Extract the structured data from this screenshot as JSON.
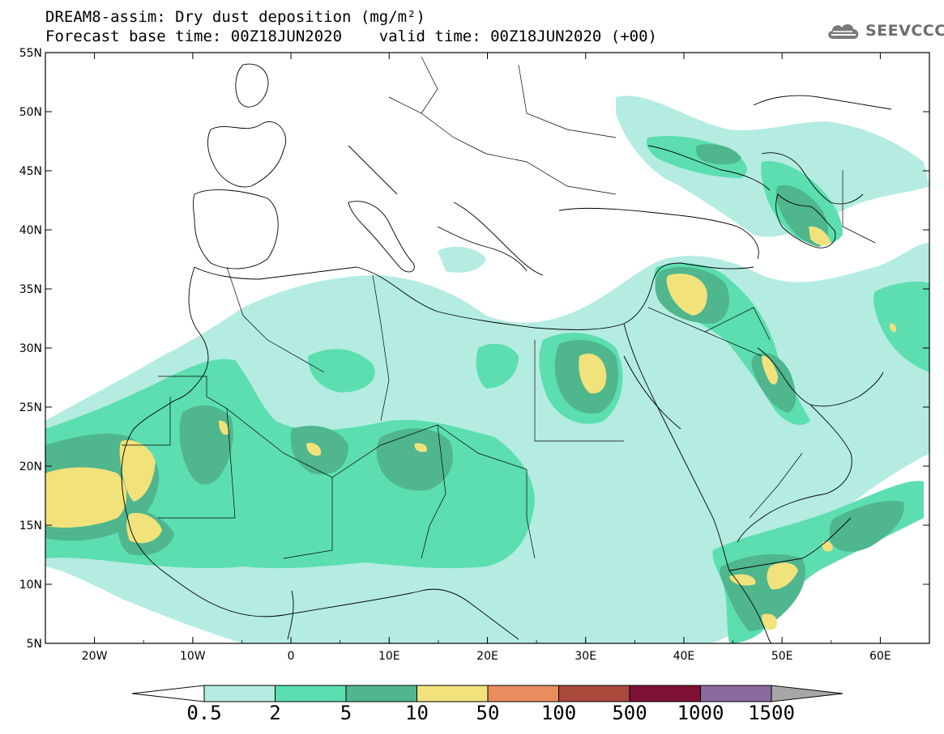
{
  "header": {
    "title_line1": "DREAM8-assim: Dry dust deposition (mg/m²)",
    "title_line2": "Forecast base time: 00Z18JUN2020    valid time: 00Z18JUN2020 (+00)"
  },
  "logo": {
    "text": "SEEVCCC",
    "icon": "cloud-logo-icon"
  },
  "map": {
    "lon_range": [
      -25,
      65
    ],
    "lat_range": [
      5,
      55
    ],
    "lat_ticks": [
      "55N",
      "50N",
      "45N",
      "40N",
      "35N",
      "30N",
      "25N",
      "20N",
      "15N",
      "10N",
      "5N"
    ],
    "lon_ticks": [
      "20W",
      "10W",
      "0",
      "10E",
      "20E",
      "30E",
      "40E",
      "50E",
      "60E"
    ]
  },
  "colorbar": {
    "labels": [
      "0.5",
      "2",
      "5",
      "10",
      "50",
      "100",
      "500",
      "1000",
      "1500"
    ],
    "colors": [
      "#b4ece2",
      "#5cdeb0",
      "#4fb68d",
      "#f1e27c",
      "#e98d5f",
      "#a9493b",
      "#7e1133",
      "#8b6a9f"
    ],
    "under_color": "#ffffff",
    "over_color": "#a7a7a7"
  }
}
